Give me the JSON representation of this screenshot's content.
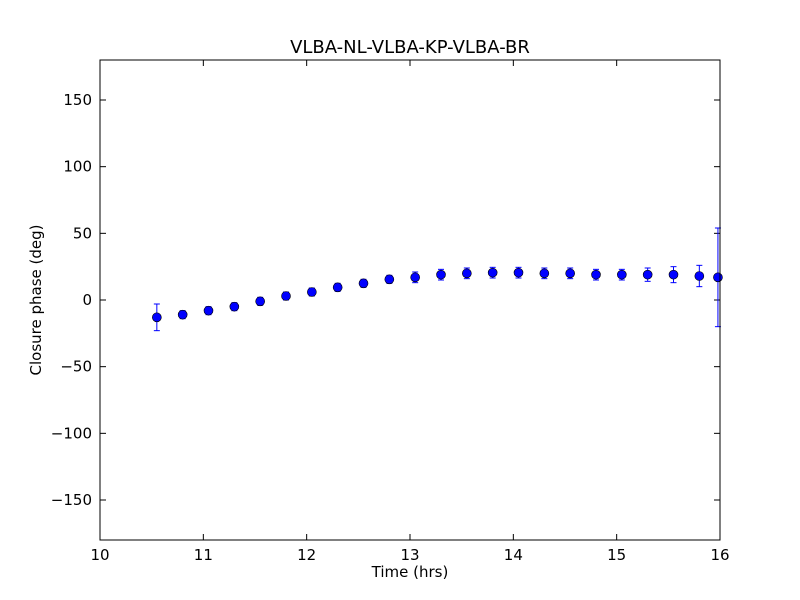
{
  "chart_data": {
    "type": "scatter",
    "title": "VLBA-NL-VLBA-KP-VLBA-BR",
    "xlabel": "Time (hrs)",
    "ylabel": "Closure phase (deg)",
    "xlim": [
      10,
      16
    ],
    "ylim": [
      -180,
      180
    ],
    "xticks": [
      "10",
      "11",
      "12",
      "13",
      "14",
      "15",
      "16"
    ],
    "yticks": [
      "−150",
      "−100",
      "−50",
      "0",
      "50",
      "100",
      "150"
    ],
    "grid": false,
    "marker_color": "#0000ff",
    "series": [
      {
        "x": [
          10.55,
          10.8,
          11.05,
          11.3,
          11.55,
          11.8,
          12.05,
          12.3,
          12.55,
          12.8,
          13.05,
          13.3,
          13.55,
          13.8,
          14.05,
          14.3,
          14.55,
          14.8,
          15.05,
          15.3,
          15.55,
          15.8,
          15.98
        ],
        "y": [
          -13,
          -11,
          -8,
          -5,
          -1,
          3,
          6,
          9.5,
          12.5,
          15.5,
          17,
          19,
          20,
          20.5,
          20.5,
          20,
          20,
          19,
          19,
          19,
          19,
          18,
          17
        ],
        "err": [
          10,
          3,
          3,
          3,
          3,
          3,
          3,
          3,
          3,
          3,
          4,
          4,
          4,
          4,
          4,
          4,
          4,
          4,
          4,
          5,
          6,
          8,
          37
        ]
      }
    ]
  }
}
